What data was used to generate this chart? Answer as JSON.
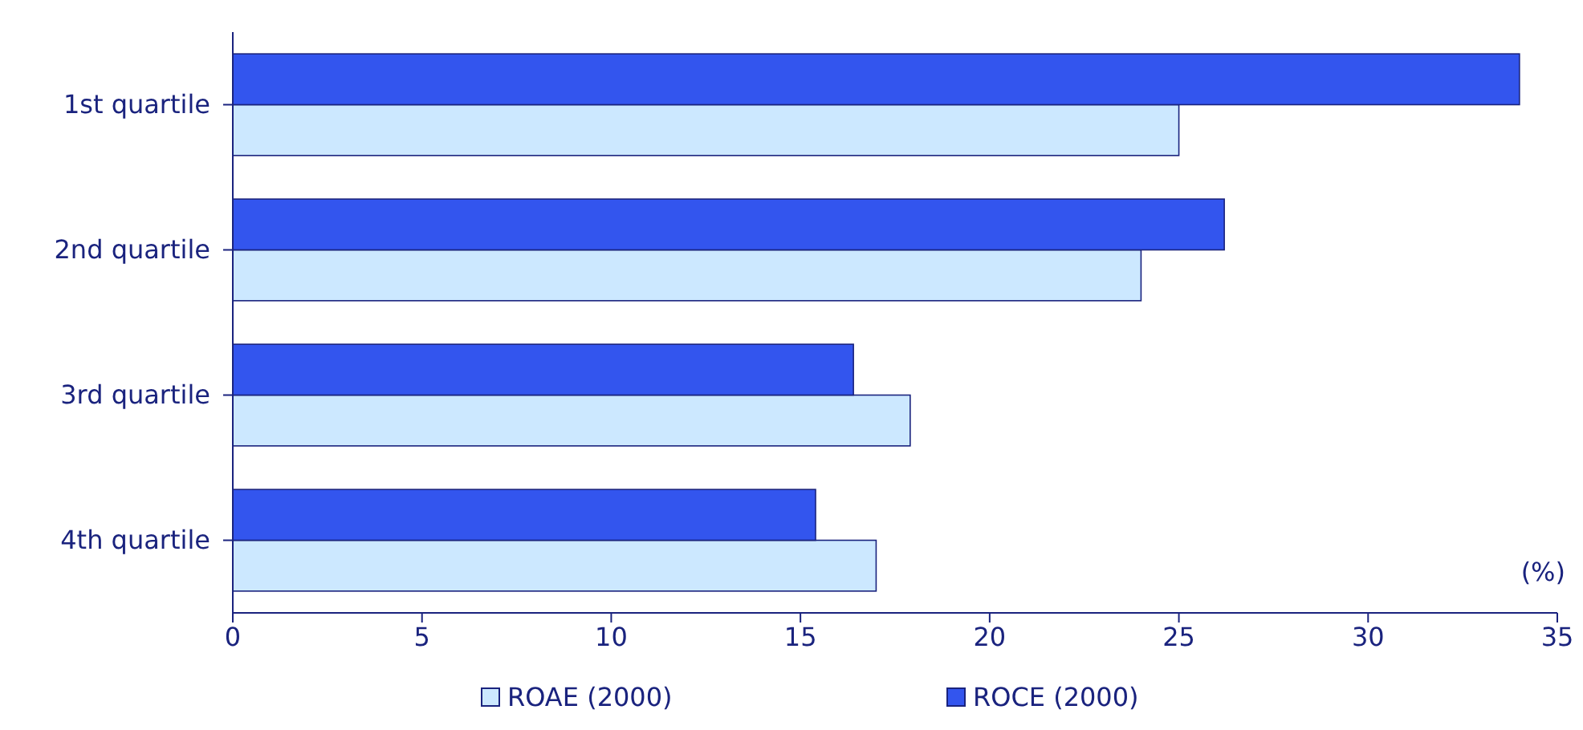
{
  "chart_data": {
    "type": "bar",
    "orientation": "horizontal",
    "categories": [
      "1st quartile",
      "2nd quartile",
      "3rd quartile",
      "4th quartile"
    ],
    "series": [
      {
        "name": "ROAE (2000)",
        "color": "#cce8ff",
        "values": [
          25,
          24,
          17.9,
          17
        ]
      },
      {
        "name": "ROCE (2000)",
        "color": "#3355ee",
        "values": [
          34,
          26.2,
          16.4,
          15.4
        ]
      }
    ],
    "xlim": [
      0,
      35
    ],
    "xticks": [
      0,
      5,
      10,
      15,
      20,
      25,
      30,
      35
    ],
    "legend": "bottom",
    "grid": false,
    "annotations": [
      "(%)"
    ]
  }
}
